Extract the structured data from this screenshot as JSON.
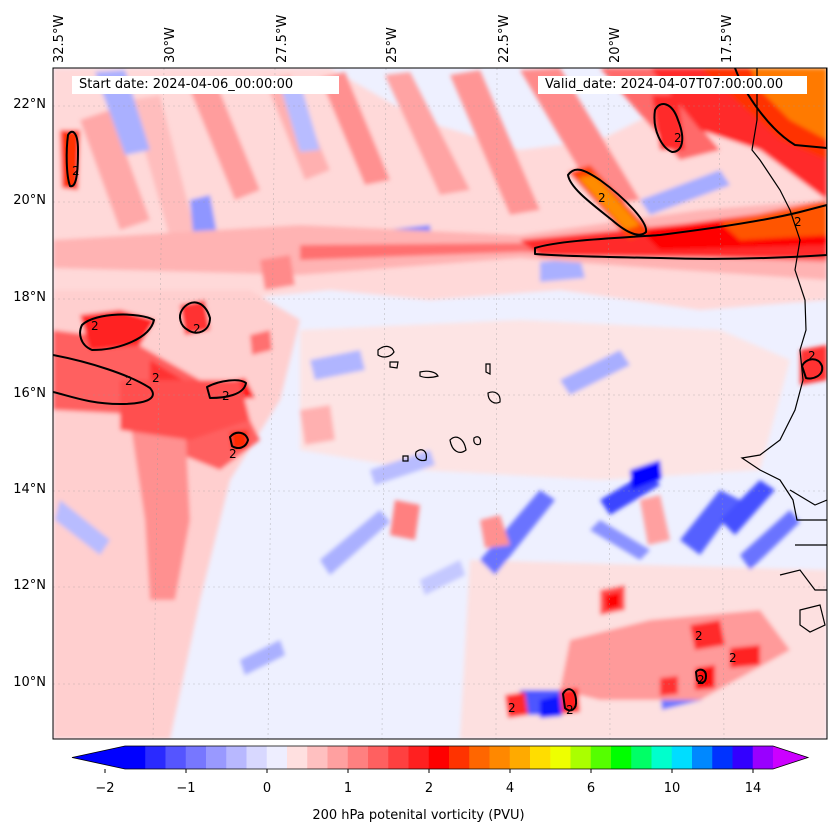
{
  "header": {
    "start_date": "Start date: 2024-04-06_00:00:00",
    "valid_date": "Valid_date: 2024-04-07T07:00:00.00"
  },
  "map": {
    "lon_labels": [
      "32.5°W",
      "30°W",
      "27.5°W",
      "25°W",
      "22.5°W",
      "20°W",
      "17.5°W"
    ],
    "lat_labels": [
      "22°N",
      "20°N",
      "18°N",
      "16°N",
      "14°N",
      "12°N",
      "10°N"
    ],
    "contour_labels": [
      "2",
      "2",
      "2",
      "2",
      "2",
      "2",
      "2",
      "2",
      "2",
      "2",
      "2",
      "2",
      "2",
      "2",
      "2",
      "2"
    ],
    "background_color": "#eef0ff",
    "contour_color": "#000000"
  },
  "colorbar": {
    "label": "200 hPa potenital vorticity (PVU)",
    "tick_labels": [
      "−2",
      "−1",
      "0",
      "1",
      "2",
      "4",
      "6",
      "10",
      "14"
    ],
    "colors": [
      "#0000ff",
      "#2a2aff",
      "#5555ff",
      "#7777ff",
      "#9999ff",
      "#b8b8ff",
      "#d8d8ff",
      "#eeeeff",
      "#ffe0e0",
      "#ffc0c0",
      "#ffa0a0",
      "#ff8080",
      "#ff6060",
      "#ff4040",
      "#ff2020",
      "#ff0000",
      "#ff3300",
      "#ff6600",
      "#ff8800",
      "#ffaa00",
      "#ffdd00",
      "#eeff00",
      "#aaff00",
      "#55ff00",
      "#00ff00",
      "#00ff66",
      "#00ffcc",
      "#00ddff",
      "#0088ff",
      "#0033ff",
      "#3300ff",
      "#9900ff"
    ],
    "under_color": "#0000ff",
    "over_color": "#cc00ff"
  }
}
